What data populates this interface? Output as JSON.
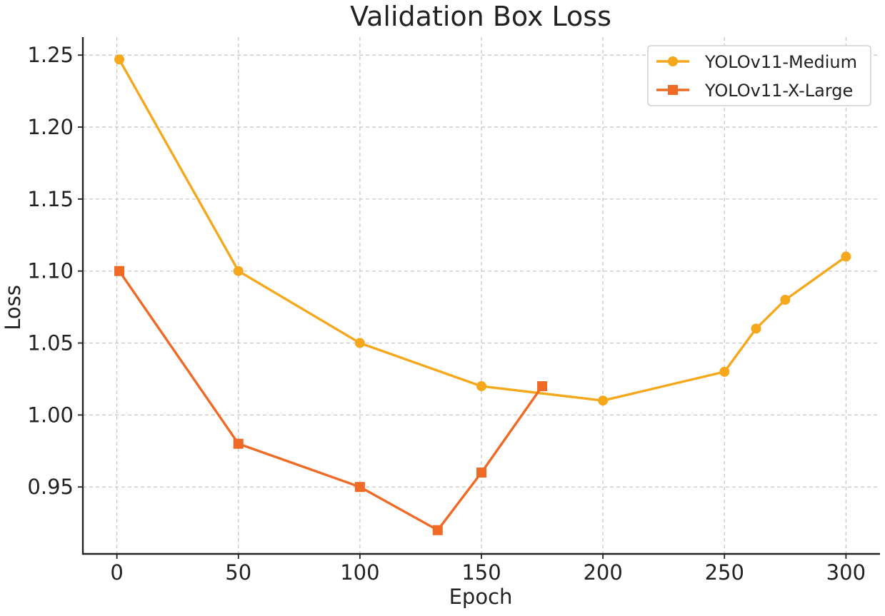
{
  "chart_data": {
    "type": "line",
    "title": "Validation Box Loss",
    "xlabel": "Epoch",
    "ylabel": "Loss",
    "xlim": [
      -14,
      314
    ],
    "ylim": [
      0.9035,
      1.2625
    ],
    "xticks": [
      0,
      50,
      100,
      150,
      200,
      250,
      300
    ],
    "xtick_labels": [
      "0",
      "50",
      "100",
      "150",
      "200",
      "250",
      "300"
    ],
    "yticks": [
      0.95,
      1.0,
      1.05,
      1.1,
      1.15,
      1.2,
      1.25
    ],
    "ytick_labels": [
      "0.95",
      "1.00",
      "1.05",
      "1.10",
      "1.15",
      "1.20",
      "1.25"
    ],
    "grid": true,
    "legend_position": "top-right",
    "series": [
      {
        "name": "YOLOv11-Medium",
        "color": "#F5A81C",
        "marker": "circle",
        "x": [
          1,
          50,
          100,
          150,
          200,
          250,
          263,
          275,
          300
        ],
        "y": [
          1.247,
          1.1,
          1.05,
          1.02,
          1.01,
          1.03,
          1.06,
          1.08,
          1.11
        ]
      },
      {
        "name": "YOLOv11-X-Large",
        "color": "#EE6A25",
        "marker": "square",
        "x": [
          1,
          50,
          100,
          132,
          150,
          175
        ],
        "y": [
          1.1,
          0.98,
          0.95,
          0.92,
          0.96,
          1.02
        ]
      }
    ]
  }
}
